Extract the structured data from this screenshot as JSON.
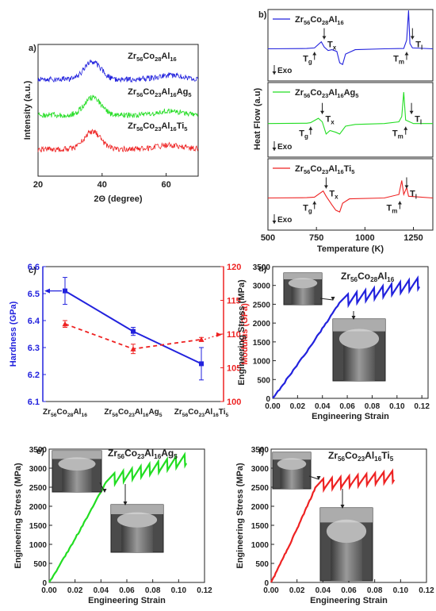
{
  "chart_data": [
    {
      "panel": "a)",
      "type": "line",
      "xlabel": "2Θ (degree)",
      "ylabel": "Intensity (a.u.)",
      "xlim": [
        20,
        70
      ],
      "xticks": [
        20,
        40,
        60
      ],
      "series": [
        {
          "name": "Zr56Co28Al16",
          "label_parts": [
            "Zr",
            "56",
            "Co",
            "28",
            "Al",
            "16"
          ],
          "color": "#2222dd",
          "offset": 2.0,
          "peak": 37
        },
        {
          "name": "Zr56Co23Al16Ag5",
          "label_parts": [
            "Zr",
            "56",
            "Co",
            "23",
            "Al",
            "16",
            "Ag",
            "5"
          ],
          "color": "#22dd22",
          "offset": 1.0,
          "peak": 37
        },
        {
          "name": "Zr56Co23Al16Ti5",
          "label_parts": [
            "Zr",
            "56",
            "Co",
            "23",
            "Al",
            "16",
            "Ti",
            "5"
          ],
          "color": "#ee2222",
          "offset": 0.0,
          "peak": 37
        }
      ]
    },
    {
      "panel": "b)",
      "type": "line",
      "xlabel": "Temperature (K)",
      "ylabel": "Heat Flow (a.u)",
      "xlim": [
        500,
        1350
      ],
      "xticks": [
        500,
        750,
        1000,
        1250
      ],
      "exo_label": "Exo",
      "series": [
        {
          "name": "Zr56Co28Al16",
          "label_parts": [
            "Zr",
            "56",
            "Co",
            "28",
            "Al",
            "16"
          ],
          "color": "#2222dd",
          "Tg": 740,
          "Tx": 790,
          "Tm": 1215,
          "Tl": 1245,
          "points": [
            [
              500,
              0
            ],
            [
              700,
              0.02
            ],
            [
              740,
              0.05
            ],
            [
              775,
              0.4
            ],
            [
              790,
              0.1
            ],
            [
              810,
              -0.1
            ],
            [
              830,
              -0.05
            ],
            [
              855,
              -0.15
            ],
            [
              870,
              -0.8
            ],
            [
              885,
              -0.9
            ],
            [
              900,
              -0.3
            ],
            [
              950,
              -0.05
            ],
            [
              1100,
              0
            ],
            [
              1200,
              0.02
            ],
            [
              1215,
              0.5
            ],
            [
              1225,
              2.2
            ],
            [
              1232,
              0.3
            ],
            [
              1245,
              0.05
            ],
            [
              1350,
              0
            ]
          ]
        },
        {
          "name": "Zr56Co23Al16Ag5",
          "label_parts": [
            "Zr",
            "56",
            "Co",
            "23",
            "Al",
            "16",
            "Ag",
            "5"
          ],
          "color": "#22dd22",
          "Tg": 720,
          "Tx": 780,
          "Tm": 1210,
          "Tl": 1240,
          "points": [
            [
              500,
              0
            ],
            [
              700,
              0.02
            ],
            [
              720,
              0.05
            ],
            [
              760,
              0.3
            ],
            [
              780,
              0.1
            ],
            [
              800,
              -0.6
            ],
            [
              820,
              -0.4
            ],
            [
              850,
              -0.5
            ],
            [
              870,
              -0.6
            ],
            [
              900,
              -0.15
            ],
            [
              950,
              -0.05
            ],
            [
              1100,
              0
            ],
            [
              1175,
              0.1
            ],
            [
              1190,
              0.4
            ],
            [
              1200,
              1.8
            ],
            [
              1210,
              0.2
            ],
            [
              1250,
              0
            ],
            [
              1350,
              0
            ]
          ]
        },
        {
          "name": "Zr56Co23Al16Ti5",
          "label_parts": [
            "Zr",
            "56",
            "Co",
            "23",
            "Al",
            "16",
            "Ti",
            "5"
          ],
          "color": "#ee2222",
          "Tg": 740,
          "Tx": 800,
          "Tm": 1180,
          "Tl": 1215,
          "points": [
            [
              500,
              0
            ],
            [
              700,
              0.02
            ],
            [
              740,
              0.05
            ],
            [
              785,
              0.4
            ],
            [
              800,
              0.1
            ],
            [
              830,
              -0.4
            ],
            [
              850,
              -0.7
            ],
            [
              870,
              -0.8
            ],
            [
              885,
              -0.3
            ],
            [
              920,
              -0.05
            ],
            [
              1100,
              0
            ],
            [
              1175,
              0.2
            ],
            [
              1190,
              1.0
            ],
            [
              1200,
              0.2
            ],
            [
              1215,
              0.6
            ],
            [
              1225,
              0.1
            ],
            [
              1350,
              0
            ]
          ]
        }
      ]
    },
    {
      "panel": "c)",
      "type": "line",
      "categories": [
        "Zr56Co28Al16",
        "Zr56Co23Al16Ag5",
        "Zr56Co23Al16Ti5"
      ],
      "category_parts": [
        [
          "Zr",
          "56",
          "Co",
          "28",
          "Al",
          "16"
        ],
        [
          "Zr",
          "56",
          "Co",
          "23",
          "Al",
          "16",
          "Ag",
          "5"
        ],
        [
          "Zr",
          "56",
          "Co",
          "23",
          "Al",
          "16",
          "Ti",
          "5"
        ]
      ],
      "ylabel": "Hardness (GPa)",
      "y2label": "Modulus (GPa)",
      "ylim": [
        6.1,
        6.6
      ],
      "yticks": [
        6.1,
        6.2,
        6.3,
        6.4,
        6.5,
        6.6
      ],
      "y2lim": [
        100,
        120
      ],
      "y2ticks": [
        100,
        105,
        110,
        115,
        120
      ],
      "series": [
        {
          "name": "Hardness",
          "axis": "left",
          "color": "#2222dd",
          "values": [
            6.51,
            6.36,
            6.24
          ],
          "errors": [
            0.05,
            0.015,
            0.06
          ]
        },
        {
          "name": "Modulus",
          "axis": "right",
          "color": "#ee2222",
          "values": [
            111.5,
            107.8,
            109.2
          ],
          "errors": [
            0.5,
            0.7,
            0.3
          ]
        }
      ]
    },
    {
      "panel": "d)",
      "type": "line",
      "xlabel": "Engineering Strain",
      "ylabel": "Engineering Stress (MPa)",
      "xlim": [
        0,
        0.125
      ],
      "xticks": [
        0.0,
        0.02,
        0.04,
        0.06,
        0.08,
        0.1,
        0.12
      ],
      "ylim": [
        0,
        3500
      ],
      "yticks": [
        0,
        500,
        1000,
        1500,
        2000,
        2500,
        3000,
        3500
      ],
      "series": [
        {
          "name": "Zr56Co28Al16",
          "label_parts": [
            "Zr",
            "56",
            "Co",
            "28",
            "Al",
            "16"
          ],
          "color": "#2222dd",
          "yield_strain": 0.055,
          "yield_stress": 2600,
          "end_strain": 0.118,
          "end_stress": 3080
        }
      ]
    },
    {
      "panel": "e)",
      "type": "line",
      "xlabel": "Engineering Strain",
      "ylabel": "Engineering Stress (MPa)",
      "xlim": [
        0,
        0.12
      ],
      "xticks": [
        0.0,
        0.02,
        0.04,
        0.06,
        0.08,
        0.1,
        0.12
      ],
      "ylim": [
        0,
        3500
      ],
      "yticks": [
        0,
        500,
        1000,
        1500,
        2000,
        2500,
        3000,
        3500
      ],
      "series": [
        {
          "name": "Zr56Co23Al16Ag5",
          "label_parts": [
            "Zr",
            "56",
            "Co",
            "23",
            "Al",
            "16",
            "Ag",
            "5"
          ],
          "color": "#22dd22",
          "yield_strain": 0.045,
          "yield_stress": 2700,
          "end_strain": 0.106,
          "end_stress": 3250
        }
      ]
    },
    {
      "panel": "f)",
      "type": "line",
      "xlabel": "Engineering Strain",
      "ylabel": "Engineering Stress (MPa)",
      "xlim": [
        0,
        0.12
      ],
      "xticks": [
        0.0,
        0.02,
        0.04,
        0.06,
        0.08,
        0.1,
        0.12
      ],
      "ylim": [
        0,
        3500
      ],
      "yticks": [
        0,
        500,
        1000,
        1500,
        2000,
        2500,
        3000,
        3500
      ],
      "series": [
        {
          "name": "Zr56Co23Al16Ti5",
          "label_parts": [
            "Zr",
            "56",
            "Co",
            "23",
            "Al",
            "16",
            "Ti",
            "5"
          ],
          "color": "#ee2222",
          "yield_strain": 0.035,
          "yield_stress": 2550,
          "end_strain": 0.095,
          "end_stress": 2780
        }
      ]
    }
  ]
}
